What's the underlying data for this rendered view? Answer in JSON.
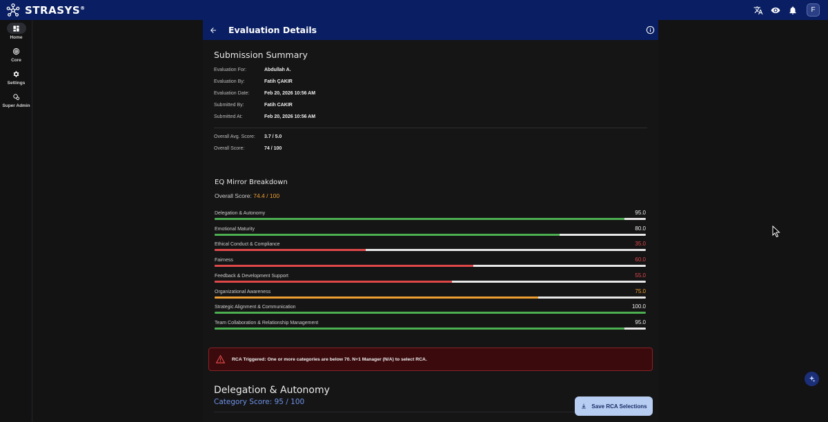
{
  "app": {
    "brand": "STRASYS",
    "brand_mark": "®",
    "avatar_initial": "F"
  },
  "topbar": {
    "icons": [
      "translate-icon",
      "eye-icon",
      "bell-icon"
    ]
  },
  "sidebar": {
    "items": [
      {
        "label": "Home",
        "icon": "dashboard-icon",
        "active": true
      },
      {
        "label": "Core",
        "icon": "core-icon",
        "active": false
      },
      {
        "label": "Settings",
        "icon": "gear-icon",
        "active": false
      },
      {
        "label": "Super Admin",
        "icon": "admin-gear-icon",
        "active": false
      }
    ]
  },
  "header": {
    "title": "Evaluation Details"
  },
  "summary": {
    "title": "Submission Summary",
    "rows": [
      {
        "label": "Evaluation For:",
        "value": "Abdullah A."
      },
      {
        "label": "Evaluation By:",
        "value": "Fatih ÇAKIR"
      },
      {
        "label": "Evaluation Date:",
        "value": "Feb 20, 2026 10:56 AM"
      },
      {
        "label": "Submitted By:",
        "value": "Fatih CAKIR"
      },
      {
        "label": "Submitted At:",
        "value": "Feb 20, 2026 10:56 AM"
      }
    ],
    "scores": [
      {
        "label": "Overall Avg. Score:",
        "value": "3.7 / 5.0"
      },
      {
        "label": "Overall Score:",
        "value": "74 / 100"
      }
    ]
  },
  "eq": {
    "title": "EQ Mirror Breakdown",
    "overall_label": "Overall Score:",
    "overall_value": "74.4 / 100",
    "categories": [
      {
        "label": "Delegation & Autonomy",
        "value": "95.0",
        "score": 95,
        "color": "#4caf50"
      },
      {
        "label": "Emotional Maturity",
        "value": "80.0",
        "score": 80,
        "color": "#4caf50"
      },
      {
        "label": "Ethical Conduct & Compliance",
        "value": "35.0",
        "score": 35,
        "color": "#e04848"
      },
      {
        "label": "Fairness",
        "value": "60.0",
        "score": 60,
        "color": "#e04848"
      },
      {
        "label": "Feedback & Development Support",
        "value": "55.0",
        "score": 55,
        "color": "#e04848"
      },
      {
        "label": "Organizational Awareness",
        "value": "75.0",
        "score": 75,
        "color": "#f0a030"
      },
      {
        "label": "Strategic Alignment & Communication",
        "value": "100.0",
        "score": 100,
        "color": "#4caf50"
      },
      {
        "label": "Team Collaboration & Relationship Management",
        "value": "95.0",
        "score": 95,
        "color": "#4caf50"
      }
    ],
    "value_colors": {
      "high": "#f0f0f0",
      "low": "#e04848",
      "mid": "#f0a030"
    }
  },
  "rca": {
    "text": "RCA Triggered: One or more categories are below 70. N+1 Manager (N/A) to select RCA."
  },
  "category_detail": {
    "title": "Delegation & Autonomy",
    "score": "Category Score: 95 / 100"
  },
  "actions": {
    "save_label": "Save RCA Selections"
  }
}
